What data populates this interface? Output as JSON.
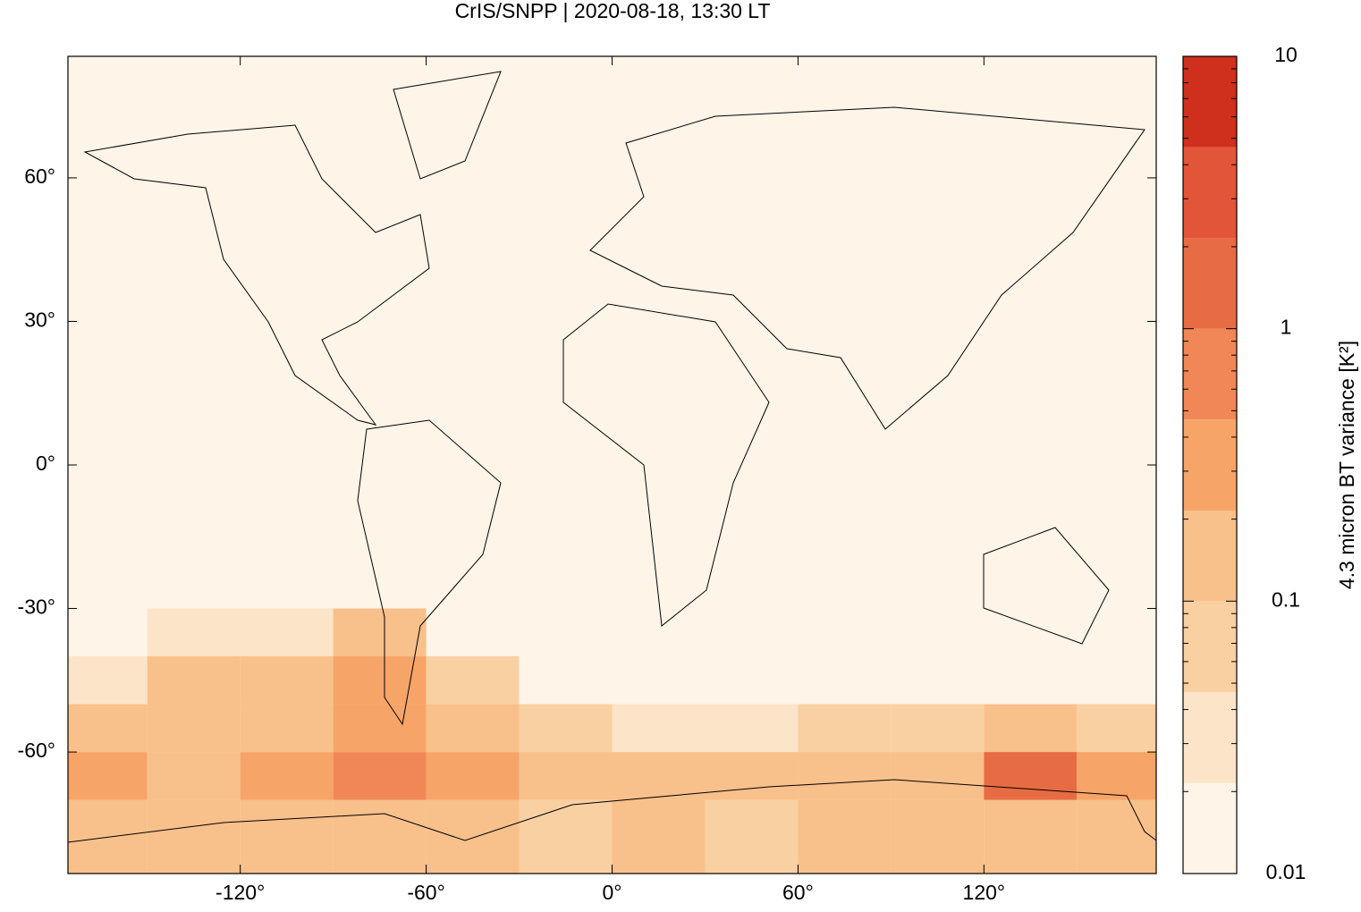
{
  "chart_data": {
    "type": "map",
    "title": "CrIS/SNPP | 2020-08-18, 13:30 LT",
    "xlim": [
      -175.6,
      175.6
    ],
    "ylim": [
      -85.4,
      85.4
    ],
    "xticks": [
      {
        "value": -120,
        "label": "-120°"
      },
      {
        "value": -60,
        "label": "-60°"
      },
      {
        "value": 0,
        "label": "0°"
      },
      {
        "value": 60,
        "label": "60°"
      },
      {
        "value": 120,
        "label": "120°"
      }
    ],
    "yticks": [
      {
        "value": -60,
        "label": "-60°"
      },
      {
        "value": -30,
        "label": "-30°"
      },
      {
        "value": 0,
        "label": "0°"
      },
      {
        "value": 30,
        "label": "30°"
      },
      {
        "value": 60,
        "label": "60°"
      }
    ],
    "field": {
      "lon_edges": [
        -180,
        -150,
        -120,
        -90,
        -60,
        -30,
        0,
        30,
        60,
        90,
        120,
        150,
        180
      ],
      "lat_edges": [
        -85.4,
        -70,
        -60,
        -50,
        -40,
        -30
      ],
      "values": [
        [
          0.2,
          0.1,
          0.15,
          0.2,
          0.15,
          0.05,
          0.1,
          0.08,
          0.15,
          0.15,
          0.15,
          0.1
        ],
        [
          0.3,
          0.2,
          0.25,
          0.6,
          0.3,
          0.1,
          0.1,
          0.1,
          0.2,
          0.2,
          1.5,
          0.3
        ],
        [
          0.1,
          0.15,
          0.2,
          0.4,
          0.2,
          0.05,
          0.03,
          0.03,
          0.05,
          0.05,
          0.1,
          0.05
        ],
        [
          0.03,
          0.1,
          0.1,
          0.3,
          0.05,
          0.02,
          0.01,
          0.01,
          0.01,
          0.02,
          0.02,
          0.02
        ],
        [
          0.01,
          0.03,
          0.03,
          0.1,
          0.01,
          0.01,
          0.01,
          0.01,
          0.01,
          0.01,
          0.01,
          0.01
        ]
      ]
    },
    "colorbar": {
      "label": "4.3 micron BT variance [K²]",
      "log_scale": true,
      "lim": [
        0.01,
        10
      ],
      "ticks": [
        0.01,
        0.1,
        1,
        10
      ],
      "levels": [
        0.01,
        0.0215,
        0.0464,
        0.1,
        0.215,
        0.464,
        1,
        2.15,
        4.64,
        10
      ],
      "colors": [
        "#fef4e8",
        "#fbe4c8",
        "#f9d0a2",
        "#f8c08a",
        "#f7a468",
        "#f18757",
        "#e86c43",
        "#e35539",
        "#cf2f1d",
        "#9b0404"
      ]
    }
  }
}
